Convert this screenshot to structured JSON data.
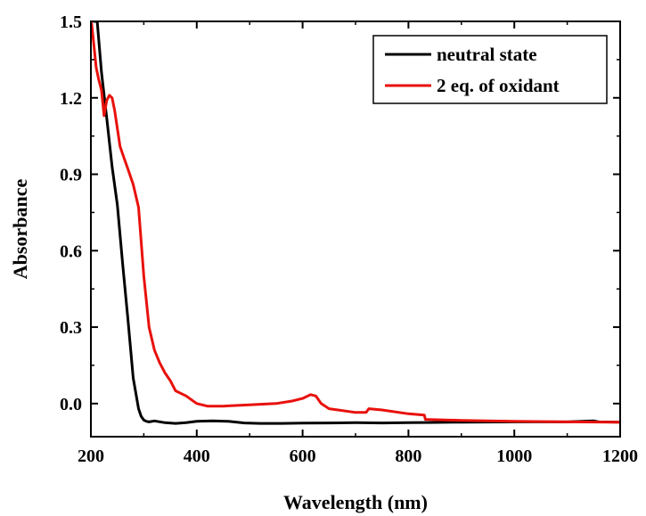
{
  "chart_data": {
    "type": "line",
    "title": "",
    "xlabel": "Wavelength (nm)",
    "ylabel": "Absorbance",
    "xlim": [
      200,
      1200
    ],
    "ylim": [
      -0.13,
      1.5
    ],
    "xticks": [
      200,
      400,
      600,
      800,
      1000,
      1200
    ],
    "yticks": [
      0.0,
      0.3,
      0.6,
      0.9,
      1.2,
      1.5
    ],
    "xtick_labels": [
      "200",
      "400",
      "600",
      "800",
      "1000",
      "1200"
    ],
    "ytick_labels": [
      "0.0",
      "0.3",
      "0.6",
      "0.9",
      "1.2",
      "1.5"
    ],
    "grid": false,
    "legend_position": "top-right",
    "series": [
      {
        "name": "neutral state",
        "color": "#000000",
        "x": [
          205,
          212,
          220,
          230,
          240,
          250,
          260,
          270,
          280,
          290,
          295,
          300,
          305,
          310,
          320,
          340,
          360,
          380,
          400,
          430,
          460,
          490,
          520,
          560,
          600,
          650,
          700,
          750,
          800,
          850,
          900,
          1000,
          1100,
          1150,
          1160,
          1200
        ],
        "y": [
          1.5,
          1.5,
          1.3,
          1.12,
          0.93,
          0.78,
          0.55,
          0.33,
          0.1,
          -0.02,
          -0.05,
          -0.065,
          -0.07,
          -0.072,
          -0.068,
          -0.075,
          -0.078,
          -0.075,
          -0.07,
          -0.068,
          -0.07,
          -0.076,
          -0.078,
          -0.078,
          -0.077,
          -0.076,
          -0.075,
          -0.076,
          -0.075,
          -0.074,
          -0.073,
          -0.072,
          -0.072,
          -0.068,
          -0.072,
          -0.073
        ]
      },
      {
        "name": "2 eq. of oxidant",
        "color": "#e8110c",
        "x": [
          201,
          205,
          210,
          215,
          220,
          225,
          230,
          235,
          240,
          245,
          250,
          255,
          260,
          265,
          270,
          280,
          290,
          300,
          310,
          320,
          330,
          340,
          350,
          360,
          380,
          400,
          420,
          450,
          500,
          550,
          580,
          600,
          615,
          625,
          635,
          650,
          700,
          720,
          725,
          750,
          800,
          830,
          832,
          900,
          1000,
          1100,
          1200
        ],
        "y": [
          1.5,
          1.42,
          1.32,
          1.27,
          1.23,
          1.13,
          1.19,
          1.21,
          1.2,
          1.15,
          1.08,
          1.01,
          0.98,
          0.95,
          0.92,
          0.86,
          0.77,
          0.5,
          0.3,
          0.21,
          0.16,
          0.12,
          0.09,
          0.05,
          0.03,
          0.0,
          -0.01,
          -0.01,
          -0.005,
          0.0,
          0.01,
          0.02,
          0.035,
          0.03,
          0.0,
          -0.02,
          -0.035,
          -0.035,
          -0.02,
          -0.025,
          -0.04,
          -0.045,
          -0.062,
          -0.066,
          -0.07,
          -0.072,
          -0.073
        ]
      }
    ]
  }
}
